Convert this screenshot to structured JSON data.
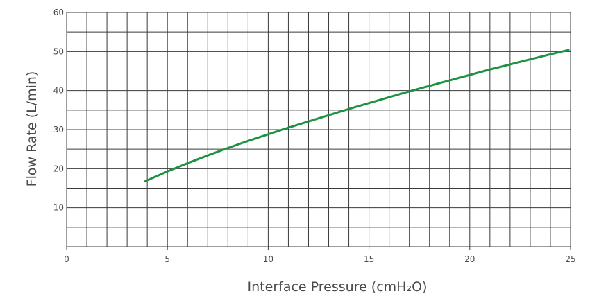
{
  "chart_data": {
    "type": "line",
    "title": "",
    "xlabel": "Interface Pressure (cmH₂O)",
    "ylabel": "Flow Rate (L/min)",
    "xlim": [
      0,
      25
    ],
    "ylim": [
      0,
      60
    ],
    "x_ticks": [
      0,
      5,
      10,
      15,
      20,
      25
    ],
    "y_ticks": [
      10,
      20,
      30,
      40,
      50,
      60
    ],
    "x_minor_step": 1,
    "y_minor_step": 5,
    "grid": true,
    "line_color": "#1f9142",
    "grid_color": "#3a3a3a",
    "series": [
      {
        "x": [
          3.9,
          5,
          6,
          7,
          8,
          9,
          10,
          11,
          12,
          13,
          14,
          15,
          16,
          17,
          18,
          19,
          20,
          21,
          22,
          23,
          24,
          24.9
        ],
        "values": [
          16.8,
          19.3,
          21.4,
          23.4,
          25.3,
          27.1,
          28.8,
          30.5,
          32.1,
          33.7,
          35.3,
          36.8,
          38.3,
          39.8,
          41.2,
          42.6,
          44.0,
          45.4,
          46.7,
          48.0,
          49.3,
          50.4
        ]
      }
    ]
  }
}
